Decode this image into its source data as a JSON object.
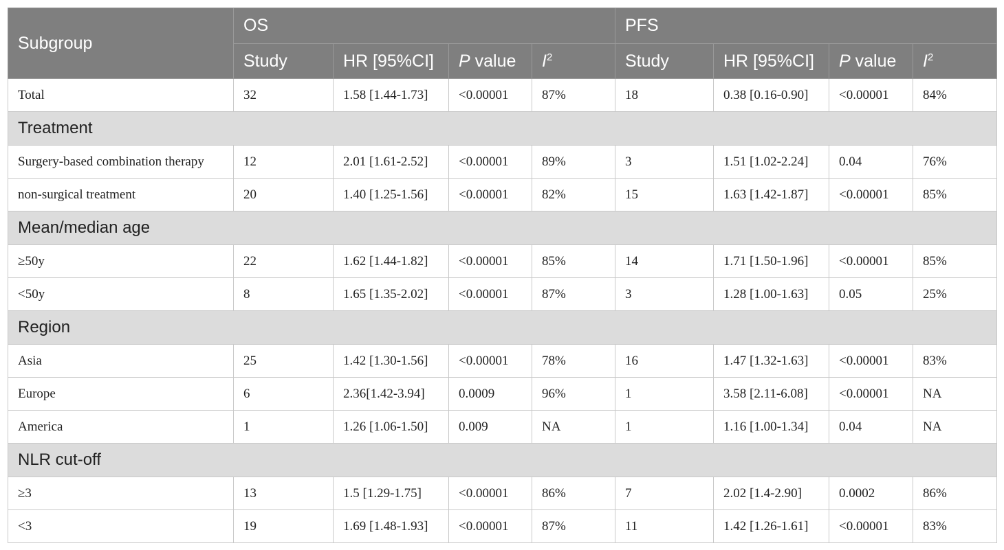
{
  "header": {
    "subgroup": "Subgroup",
    "os": "OS",
    "pfs": "PFS",
    "study": "Study",
    "hr": "HR [95%CI]",
    "p_italic": "P",
    "p_rest": " value",
    "i_letter": "I",
    "i_sup": "2"
  },
  "sections": [
    {
      "label": "",
      "rows": [
        {
          "subgroup": "Total",
          "os_study": "32",
          "os_hr": "1.58 [1.44-1.73]",
          "os_p": "<0.00001",
          "os_i2": "87%",
          "pfs_study": "18",
          "pfs_hr": "0.38 [0.16-0.90]",
          "pfs_p": "<0.00001",
          "pfs_i2": "84%"
        }
      ]
    },
    {
      "label": "Treatment",
      "rows": [
        {
          "subgroup": "Surgery-based combination therapy",
          "os_study": "12",
          "os_hr": "2.01 [1.61-2.52]",
          "os_p": "<0.00001",
          "os_i2": "89%",
          "pfs_study": "3",
          "pfs_hr": "1.51 [1.02-2.24]",
          "pfs_p": "0.04",
          "pfs_i2": "76%"
        },
        {
          "subgroup": "non-surgical treatment",
          "os_study": "20",
          "os_hr": "1.40 [1.25-1.56]",
          "os_p": "<0.00001",
          "os_i2": "82%",
          "pfs_study": "15",
          "pfs_hr": "1.63 [1.42-1.87]",
          "pfs_p": "<0.00001",
          "pfs_i2": "85%"
        }
      ]
    },
    {
      "label": "Mean/median age",
      "rows": [
        {
          "subgroup": "≥50y",
          "os_study": "22",
          "os_hr": "1.62 [1.44-1.82]",
          "os_p": "<0.00001",
          "os_i2": "85%",
          "pfs_study": "14",
          "pfs_hr": "1.71 [1.50-1.96]",
          "pfs_p": "<0.00001",
          "pfs_i2": "85%"
        },
        {
          "subgroup": "<50y",
          "os_study": "8",
          "os_hr": "1.65 [1.35-2.02]",
          "os_p": "<0.00001",
          "os_i2": "87%",
          "pfs_study": "3",
          "pfs_hr": "1.28 [1.00-1.63]",
          "pfs_p": "0.05",
          "pfs_i2": "25%"
        }
      ]
    },
    {
      "label": "Region",
      "rows": [
        {
          "subgroup": "Asia",
          "os_study": "25",
          "os_hr": "1.42 [1.30-1.56]",
          "os_p": "<0.00001",
          "os_i2": "78%",
          "pfs_study": "16",
          "pfs_hr": "1.47 [1.32-1.63]",
          "pfs_p": "<0.00001",
          "pfs_i2": "83%"
        },
        {
          "subgroup": "Europe",
          "os_study": "6",
          "os_hr": "2.36[1.42-3.94]",
          "os_p": "0.0009",
          "os_i2": "96%",
          "pfs_study": "1",
          "pfs_hr": "3.58 [2.11-6.08]",
          "pfs_p": "<0.00001",
          "pfs_i2": "NA"
        },
        {
          "subgroup": "America",
          "os_study": "1",
          "os_hr": "1.26 [1.06-1.50]",
          "os_p": "0.009",
          "os_i2": "NA",
          "pfs_study": "1",
          "pfs_hr": "1.16 [1.00-1.34]",
          "pfs_p": "0.04",
          "pfs_i2": "NA"
        }
      ]
    },
    {
      "label": "NLR cut-off",
      "rows": [
        {
          "subgroup": "≥3",
          "os_study": "13",
          "os_hr": "1.5 [1.29-1.75]",
          "os_p": "<0.00001",
          "os_i2": "86%",
          "pfs_study": "7",
          "pfs_hr": "2.02 [1.4-2.90]",
          "pfs_p": "0.0002",
          "pfs_i2": "86%"
        },
        {
          "subgroup": "<3",
          "os_study": "19",
          "os_hr": "1.69 [1.48-1.93]",
          "os_p": "<0.00001",
          "os_i2": "87%",
          "pfs_study": "11",
          "pfs_hr": "1.42 [1.26-1.61]",
          "pfs_p": "<0.00001",
          "pfs_i2": "83%"
        }
      ]
    }
  ]
}
